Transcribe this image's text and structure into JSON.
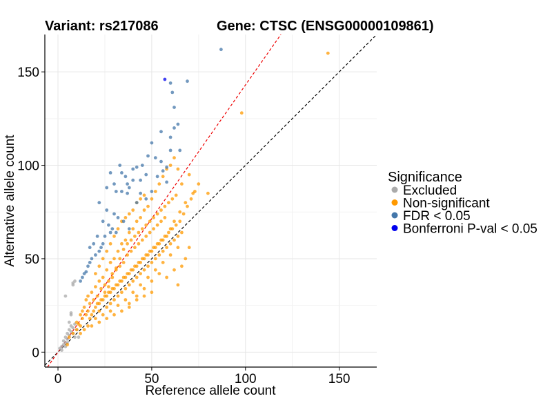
{
  "chart_data": {
    "type": "scatter",
    "title_variant": "Variant: rs217086",
    "title_gene": "Gene: CTSC (ENSG00000109861)",
    "xlabel": "Reference allele count",
    "ylabel": "Alternative allele count",
    "xlim": [
      -7,
      170
    ],
    "ylim": [
      -8,
      170
    ],
    "xticks": [
      0,
      50,
      100,
      150
    ],
    "yticks": [
      0,
      50,
      100,
      150
    ],
    "grid": true,
    "legend": {
      "title": "Significance",
      "position": "right",
      "entries": [
        {
          "label": "Excluded",
          "color": "#aaaaaa"
        },
        {
          "label": "Non-significant",
          "color": "#ff9900"
        },
        {
          "label": "FDR < 0.05",
          "color": "#4477aa"
        },
        {
          "label": "Bonferroni P-val < 0.05",
          "color": "#0000ee"
        }
      ]
    },
    "reference_lines": [
      {
        "name": "y = x",
        "slope": 1.0,
        "intercept": 0,
        "color": "#000000",
        "style": "dashed"
      },
      {
        "name": "fitted ratio",
        "slope": 1.43,
        "intercept": 0,
        "color": "#ee0000",
        "style": "dashed"
      }
    ],
    "series": [
      {
        "name": "Excluded",
        "color": "#aaaaaa",
        "points": [
          [
            1,
            2
          ],
          [
            2,
            3
          ],
          [
            3,
            4
          ],
          [
            3,
            6
          ],
          [
            4,
            5
          ],
          [
            4,
            8
          ],
          [
            5,
            7
          ],
          [
            5,
            10
          ],
          [
            6,
            9
          ],
          [
            6,
            12
          ],
          [
            7,
            11
          ],
          [
            7,
            14
          ],
          [
            8,
            10
          ],
          [
            6,
            16
          ],
          [
            8,
            13
          ],
          [
            7,
            20
          ],
          [
            7,
            21
          ],
          [
            4,
            30
          ],
          [
            8,
            36
          ],
          [
            9,
            38
          ],
          [
            8,
            37
          ],
          [
            2,
            1
          ],
          [
            4,
            3
          ],
          [
            5,
            5
          ],
          [
            9,
            15
          ],
          [
            10,
            12
          ],
          [
            11,
            8
          ],
          [
            9,
            8
          ]
        ]
      },
      {
        "name": "Non-significant",
        "color": "#ff9900",
        "points": [
          [
            5,
            4
          ],
          [
            6,
            8
          ],
          [
            8,
            10
          ],
          [
            10,
            12
          ],
          [
            10,
            16
          ],
          [
            12,
            14
          ],
          [
            12,
            20
          ],
          [
            13,
            18
          ],
          [
            14,
            24
          ],
          [
            15,
            20
          ],
          [
            15,
            28
          ],
          [
            16,
            22
          ],
          [
            16,
            30
          ],
          [
            17,
            26
          ],
          [
            18,
            32
          ],
          [
            18,
            20
          ],
          [
            19,
            28
          ],
          [
            20,
            35
          ],
          [
            20,
            24
          ],
          [
            21,
            30
          ],
          [
            22,
            38
          ],
          [
            22,
            26
          ],
          [
            23,
            34
          ],
          [
            24,
            40
          ],
          [
            24,
            28
          ],
          [
            25,
            36
          ],
          [
            26,
            44
          ],
          [
            26,
            30
          ],
          [
            27,
            38
          ],
          [
            28,
            48
          ],
          [
            28,
            32
          ],
          [
            29,
            42
          ],
          [
            30,
            50
          ],
          [
            30,
            34
          ],
          [
            31,
            44
          ],
          [
            32,
            54
          ],
          [
            32,
            36
          ],
          [
            33,
            46
          ],
          [
            34,
            58
          ],
          [
            34,
            38
          ],
          [
            35,
            48
          ],
          [
            36,
            60
          ],
          [
            36,
            40
          ],
          [
            37,
            52
          ],
          [
            38,
            64
          ],
          [
            38,
            42
          ],
          [
            39,
            54
          ],
          [
            40,
            66
          ],
          [
            40,
            44
          ],
          [
            41,
            56
          ],
          [
            42,
            70
          ],
          [
            42,
            46
          ],
          [
            43,
            58
          ],
          [
            44,
            72
          ],
          [
            44,
            48
          ],
          [
            45,
            60
          ],
          [
            46,
            76
          ],
          [
            46,
            50
          ],
          [
            47,
            62
          ],
          [
            48,
            78
          ],
          [
            48,
            52
          ],
          [
            49,
            64
          ],
          [
            50,
            82
          ],
          [
            50,
            54
          ],
          [
            51,
            66
          ],
          [
            52,
            86
          ],
          [
            52,
            56
          ],
          [
            53,
            68
          ],
          [
            54,
            90
          ],
          [
            54,
            58
          ],
          [
            55,
            70
          ],
          [
            56,
            94
          ],
          [
            56,
            60
          ],
          [
            57,
            72
          ],
          [
            58,
            98
          ],
          [
            58,
            62
          ],
          [
            60,
            100
          ],
          [
            60,
            66
          ],
          [
            62,
            104
          ],
          [
            62,
            70
          ],
          [
            64,
            98
          ],
          [
            65,
            75
          ],
          [
            66,
            90
          ],
          [
            68,
            80
          ],
          [
            70,
            95
          ],
          [
            72,
            85
          ],
          [
            75,
            90
          ],
          [
            80,
            85
          ],
          [
            98,
            128
          ],
          [
            144,
            160
          ],
          [
            20,
            18
          ],
          [
            22,
            22
          ],
          [
            24,
            20
          ],
          [
            26,
            24
          ],
          [
            28,
            26
          ],
          [
            30,
            28
          ],
          [
            32,
            30
          ],
          [
            34,
            32
          ],
          [
            36,
            34
          ],
          [
            38,
            36
          ],
          [
            40,
            38
          ],
          [
            42,
            40
          ],
          [
            44,
            42
          ],
          [
            46,
            44
          ],
          [
            48,
            46
          ],
          [
            50,
            48
          ],
          [
            52,
            50
          ],
          [
            54,
            52
          ],
          [
            56,
            54
          ],
          [
            58,
            56
          ],
          [
            60,
            58
          ],
          [
            62,
            60
          ],
          [
            64,
            62
          ],
          [
            66,
            64
          ],
          [
            18,
            14
          ],
          [
            22,
            16
          ],
          [
            26,
            18
          ],
          [
            30,
            20
          ],
          [
            34,
            22
          ],
          [
            38,
            26
          ],
          [
            42,
            30
          ],
          [
            46,
            34
          ],
          [
            50,
            38
          ],
          [
            54,
            42
          ],
          [
            20,
            42
          ],
          [
            22,
            46
          ],
          [
            24,
            50
          ],
          [
            26,
            54
          ],
          [
            28,
            58
          ],
          [
            30,
            62
          ],
          [
            32,
            66
          ],
          [
            34,
            70
          ],
          [
            36,
            72
          ],
          [
            38,
            74
          ],
          [
            40,
            76
          ],
          [
            42,
            80
          ],
          [
            44,
            82
          ],
          [
            46,
            84
          ],
          [
            25,
            32
          ],
          [
            27,
            35
          ],
          [
            29,
            40
          ],
          [
            31,
            45
          ],
          [
            33,
            50
          ],
          [
            35,
            55
          ],
          [
            37,
            58
          ],
          [
            39,
            60
          ],
          [
            41,
            62
          ],
          [
            43,
            64
          ],
          [
            45,
            66
          ],
          [
            47,
            68
          ],
          [
            49,
            70
          ],
          [
            51,
            72
          ],
          [
            53,
            74
          ],
          [
            55,
            76
          ],
          [
            57,
            78
          ],
          [
            59,
            80
          ],
          [
            61,
            82
          ],
          [
            63,
            84
          ],
          [
            28,
            22
          ],
          [
            32,
            25
          ],
          [
            36,
            28
          ],
          [
            40,
            32
          ],
          [
            44,
            36
          ],
          [
            48,
            40
          ],
          [
            52,
            44
          ],
          [
            56,
            48
          ],
          [
            60,
            52
          ],
          [
            64,
            56
          ],
          [
            14,
            12
          ],
          [
            16,
            14
          ],
          [
            12,
            10
          ],
          [
            11,
            15
          ],
          [
            13,
            22
          ],
          [
            17,
            18
          ],
          [
            19,
            22
          ],
          [
            21,
            26
          ],
          [
            23,
            28
          ],
          [
            25,
            30
          ],
          [
            27,
            32
          ],
          [
            29,
            34
          ],
          [
            31,
            36
          ],
          [
            33,
            38
          ],
          [
            35,
            40
          ],
          [
            37,
            42
          ],
          [
            39,
            44
          ],
          [
            41,
            46
          ],
          [
            43,
            48
          ],
          [
            45,
            50
          ],
          [
            47,
            52
          ],
          [
            49,
            54
          ],
          [
            51,
            56
          ],
          [
            53,
            58
          ],
          [
            55,
            60
          ],
          [
            57,
            62
          ],
          [
            59,
            64
          ],
          [
            61,
            66
          ],
          [
            63,
            68
          ],
          [
            65,
            70
          ],
          [
            67,
            74
          ],
          [
            69,
            78
          ],
          [
            71,
            82
          ],
          [
            73,
            86
          ],
          [
            66,
            46
          ],
          [
            68,
            50
          ],
          [
            70,
            56
          ],
          [
            62,
            44
          ],
          [
            58,
            40
          ],
          [
            64,
            36
          ],
          [
            50,
            32
          ],
          [
            46,
            30
          ],
          [
            42,
            28
          ],
          [
            38,
            24
          ]
        ]
      },
      {
        "name": "FDR < 0.05",
        "color": "#4477aa",
        "points": [
          [
            87,
            162
          ],
          [
            61,
            139
          ],
          [
            62,
            131
          ],
          [
            60,
            144
          ],
          [
            69,
            145
          ],
          [
            64,
            122
          ],
          [
            62,
            120
          ],
          [
            60,
            115
          ],
          [
            55,
            118
          ],
          [
            50,
            112
          ],
          [
            48,
            105
          ],
          [
            52,
            104
          ],
          [
            55,
            102
          ],
          [
            45,
            100
          ],
          [
            42,
            99
          ],
          [
            40,
            98
          ],
          [
            33,
            100
          ],
          [
            28,
            96
          ],
          [
            36,
            94
          ],
          [
            38,
            88
          ],
          [
            44,
            92
          ],
          [
            50,
            86
          ],
          [
            53,
            94
          ],
          [
            56,
            97
          ],
          [
            58,
            99
          ],
          [
            60,
            108
          ],
          [
            65,
            108
          ],
          [
            58,
            91
          ],
          [
            31,
            86
          ],
          [
            34,
            86
          ],
          [
            37,
            85
          ],
          [
            42,
            80
          ],
          [
            22,
            80
          ],
          [
            26,
            76
          ],
          [
            30,
            74
          ],
          [
            32,
            72
          ],
          [
            35,
            70
          ],
          [
            38,
            66
          ],
          [
            28,
            64
          ],
          [
            25,
            62
          ],
          [
            24,
            58
          ],
          [
            23,
            56
          ],
          [
            22,
            54
          ],
          [
            20,
            52
          ],
          [
            18,
            50
          ],
          [
            17,
            48
          ],
          [
            16,
            46
          ],
          [
            15,
            43
          ],
          [
            14,
            42
          ],
          [
            13,
            40
          ],
          [
            12,
            38
          ],
          [
            44,
            85
          ],
          [
            47,
            82
          ],
          [
            24,
            70
          ],
          [
            27,
            68
          ],
          [
            29,
            66
          ],
          [
            31,
            64
          ],
          [
            21,
            62
          ],
          [
            19,
            58
          ],
          [
            17,
            56
          ],
          [
            26,
            88
          ],
          [
            30,
            90
          ],
          [
            34,
            96
          ],
          [
            37,
            90
          ],
          [
            40,
            92
          ],
          [
            47,
            95
          ]
        ]
      },
      {
        "name": "Bonferroni P-val < 0.05",
        "color": "#0000ee",
        "points": [
          [
            57,
            146
          ]
        ]
      }
    ]
  }
}
